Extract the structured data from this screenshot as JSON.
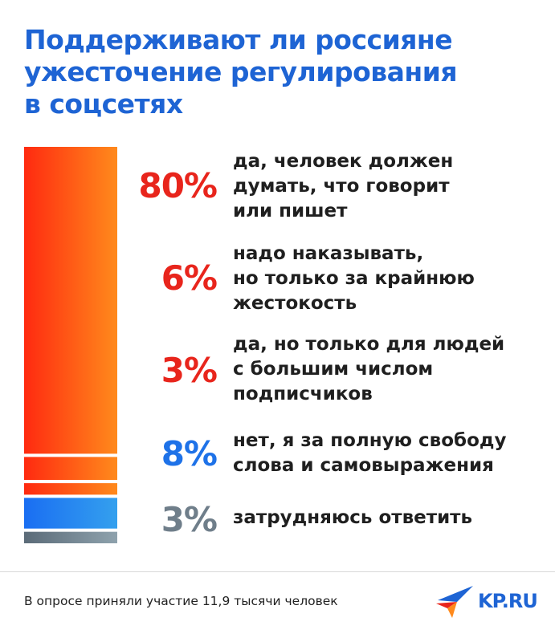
{
  "title_lines": [
    "Поддерживают ли россияне",
    "ужесточение регулирования",
    "в соцсетях"
  ],
  "chart_data": {
    "type": "bar",
    "orientation": "stacked-vertical",
    "title": "Поддерживают ли россияне ужесточение регулирования в соцсетях",
    "unit": "%",
    "categories": [
      "да, человек должен думать, что говорит или пишет",
      "надо наказывать, но только за крайнюю жестокость",
      "да, но только для людей с большим числом подписчиков",
      "нет, я за полную свободу слова и самовыражения",
      "затрудняюсь ответить"
    ],
    "values": [
      80,
      6,
      3,
      8,
      3
    ],
    "value_labels": [
      "80%",
      "6%",
      "3%",
      "8%",
      "3%"
    ],
    "label_lines": [
      [
        "да, человек должен",
        "думать, что говорит",
        "или пишет"
      ],
      [
        "надо наказывать,",
        "но только за крайнюю",
        "жестокость"
      ],
      [
        "да, но только для людей",
        "с большим числом",
        "подписчиков"
      ],
      [
        "нет, я за полную свободу",
        "слова и самовыражения"
      ],
      [
        "затрудняюсь ответить"
      ]
    ],
    "colors": [
      "#e8251c",
      "#e8251c",
      "#e8251c",
      "#1e72e8",
      "#6f7e8a"
    ]
  },
  "footer": "В опросе приняли участие 11,9 тысячи человек",
  "logo": "KP.RU"
}
